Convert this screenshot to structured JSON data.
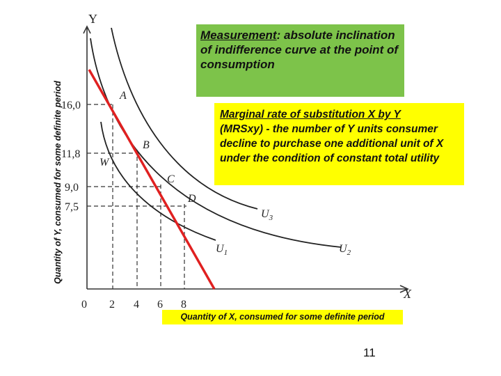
{
  "axes": {
    "y_title": "Y",
    "x_title": "X",
    "origin": "0",
    "x_ticks": [
      "2",
      "4",
      "6",
      "8"
    ],
    "y_ticks": [
      "16,0",
      "11,8",
      "9,0",
      "7,5"
    ],
    "y_label": "Quantity of Y, consumed for some definite period",
    "x_label": "Quantity of X, consumed for some definite period"
  },
  "points": [
    "A",
    "B",
    "C",
    "D",
    "W"
  ],
  "curves": [
    {
      "name": "U",
      "sub": "1"
    },
    {
      "name": "U",
      "sub": "2"
    },
    {
      "name": "U",
      "sub": "3"
    }
  ],
  "measurement": {
    "term": "Measurement",
    "text": ": absolute inclination of indifference curve at the point of consumption"
  },
  "mrs": {
    "title": "Marginal rate of substitution X by Y",
    "text": "(MRSxy) - the number of  Y units consumer decline to purchase one additional unit of X under the condition of constant total utility"
  },
  "page_number": "11"
}
